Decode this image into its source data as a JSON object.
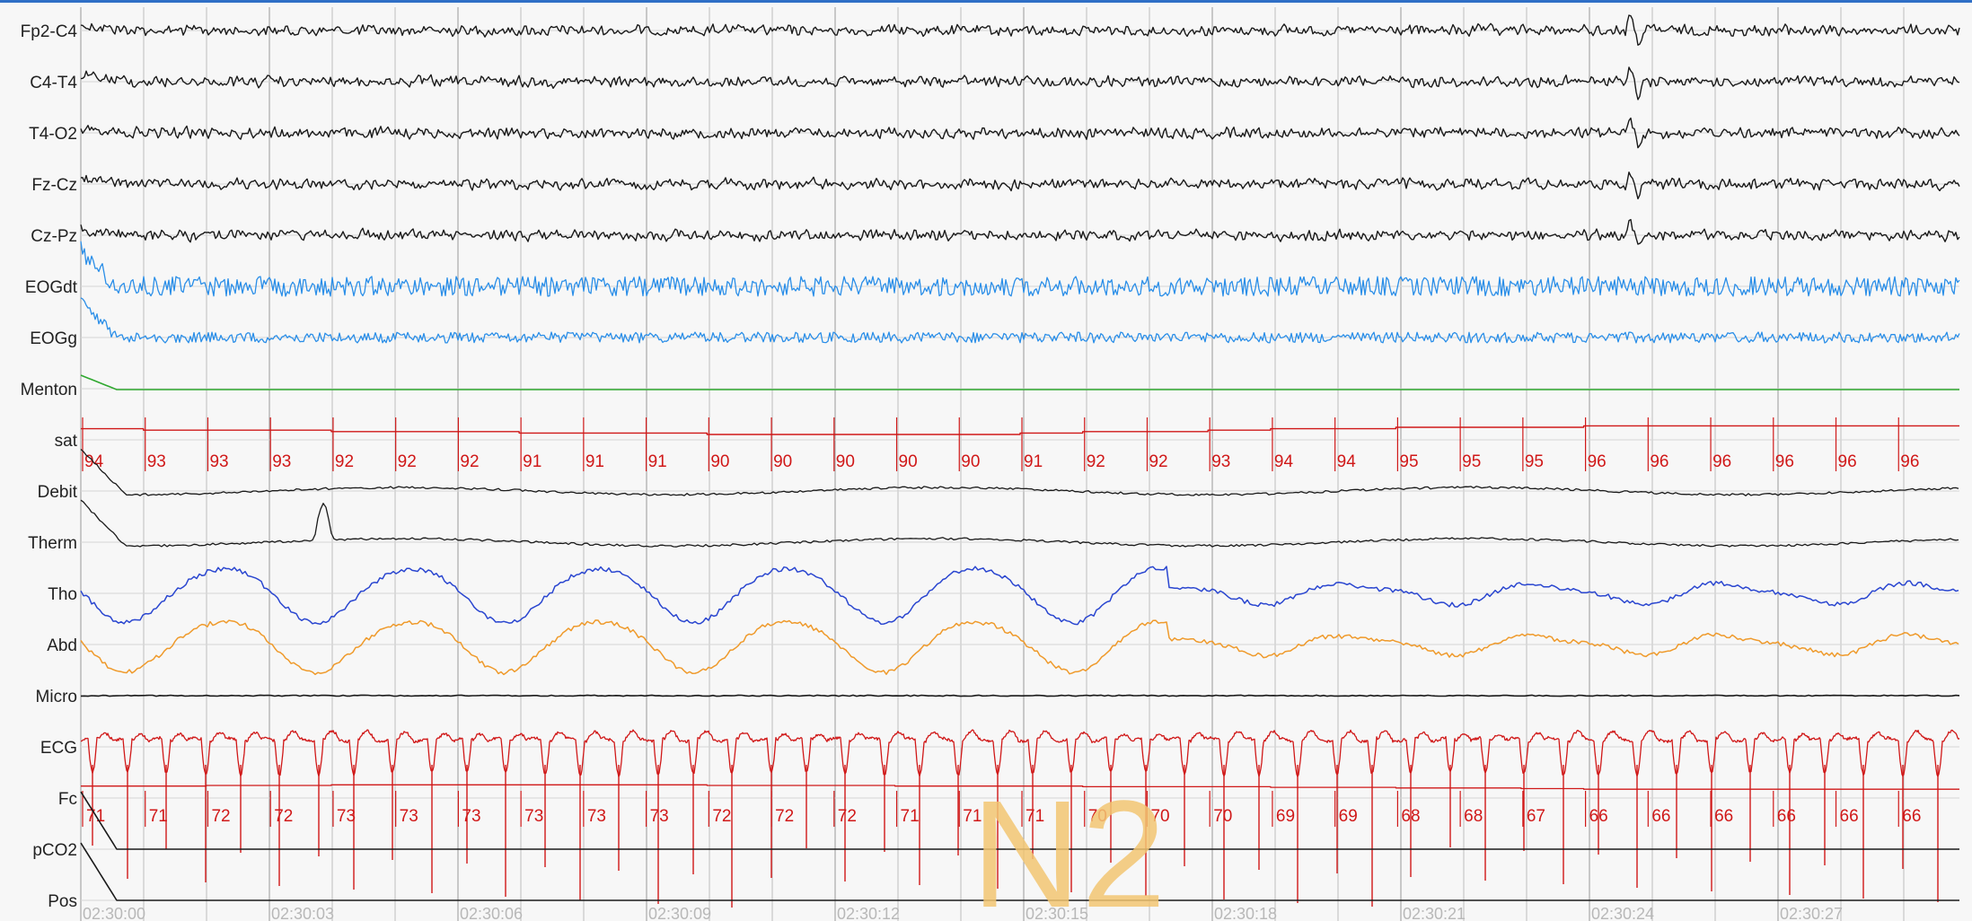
{
  "channels": [
    {
      "id": "fp2c4",
      "label": "Fp2-C4",
      "color": "#1a1a1a",
      "kind": "eeg"
    },
    {
      "id": "c4t4",
      "label": "C4-T4",
      "color": "#1a1a1a",
      "kind": "eeg"
    },
    {
      "id": "t4o2",
      "label": "T4-O2",
      "color": "#1a1a1a",
      "kind": "eeg"
    },
    {
      "id": "fzcz",
      "label": "Fz-Cz",
      "color": "#1a1a1a",
      "kind": "eeg"
    },
    {
      "id": "czpz",
      "label": "Cz-Pz",
      "color": "#1a1a1a",
      "kind": "eeg"
    },
    {
      "id": "eogdt",
      "label": "EOGdt",
      "color": "#2a8ee8",
      "kind": "eog"
    },
    {
      "id": "eogg",
      "label": "EOGg",
      "color": "#2a8ee8",
      "kind": "eog"
    },
    {
      "id": "menton",
      "label": "Menton",
      "color": "#2fa82f",
      "kind": "emg"
    },
    {
      "id": "sat",
      "label": "sat",
      "color": "#d01818",
      "kind": "sat"
    },
    {
      "id": "debit",
      "label": "Debit",
      "color": "#1a1a1a",
      "kind": "resp"
    },
    {
      "id": "therm",
      "label": "Therm",
      "color": "#1a1a1a",
      "kind": "resp"
    },
    {
      "id": "tho",
      "label": "Tho",
      "color": "#2a46d0",
      "kind": "effort"
    },
    {
      "id": "abd",
      "label": "Abd",
      "color": "#ef9a2b",
      "kind": "effort"
    },
    {
      "id": "micro",
      "label": "Micro",
      "color": "#1a1a1a",
      "kind": "flat"
    },
    {
      "id": "ecg",
      "label": "ECG",
      "color": "#d01818",
      "kind": "ecg"
    },
    {
      "id": "fc",
      "label": "Fc",
      "color": "#d01818",
      "kind": "hr"
    },
    {
      "id": "pco2",
      "label": "pCO2",
      "color": "#1a1a1a",
      "kind": "flat"
    },
    {
      "id": "pos",
      "label": "Pos",
      "color": "#1a1a1a",
      "kind": "flat"
    }
  ],
  "sat_values": [
    94,
    93,
    93,
    93,
    92,
    92,
    92,
    91,
    91,
    91,
    90,
    90,
    90,
    90,
    90,
    91,
    92,
    92,
    93,
    94,
    94,
    95,
    95,
    95,
    96,
    96,
    96,
    96,
    96,
    96
  ],
  "hr_values": [
    71,
    71,
    72,
    72,
    73,
    73,
    73,
    73,
    73,
    73,
    72,
    72,
    72,
    71,
    71,
    71,
    70,
    70,
    70,
    69,
    69,
    68,
    68,
    67,
    66,
    66,
    66,
    66,
    66,
    66
  ],
  "time_labels": [
    "02:30:00",
    "02:30:03",
    "02:30:06",
    "02:30:09",
    "02:30:12",
    "02:30:15",
    "02:30:18",
    "02:30:21",
    "02:30:24",
    "02:30:27"
  ],
  "sleep_stage": "N2",
  "colors": {
    "grid": "#bdbdbd",
    "grid_major": "#9a9a9a",
    "accent": "#2f6fc6"
  }
}
